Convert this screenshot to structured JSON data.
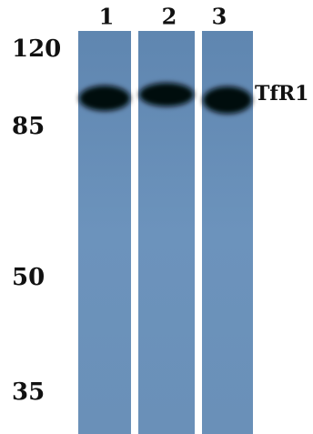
{
  "lanes": [
    "1",
    "2",
    "3"
  ],
  "markers": [
    "120",
    "85",
    "50",
    "35"
  ],
  "band_label": "TfR1"
}
